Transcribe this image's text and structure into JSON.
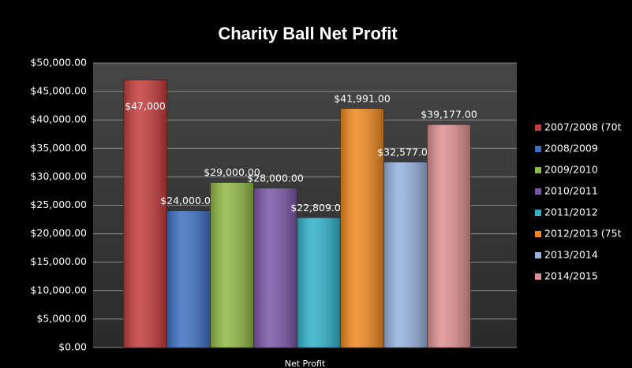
{
  "chart_data": {
    "type": "bar",
    "title": "Charity Ball Net Profit",
    "categories": [
      "Net Profit"
    ],
    "series": [
      {
        "name": "2007/2008 (70t",
        "color": "#c43b3b",
        "values": [
          47000
        ],
        "value_labels": [
          "$47,000"
        ]
      },
      {
        "name": "2008/2009",
        "color": "#3c70c2",
        "values": [
          24000
        ],
        "value_labels": [
          "$24,000.00"
        ]
      },
      {
        "name": "2009/2010",
        "color": "#90b844",
        "values": [
          29000
        ],
        "value_labels": [
          "$29,000.00"
        ]
      },
      {
        "name": "2010/2011",
        "color": "#7a55a8",
        "values": [
          28000
        ],
        "value_labels": [
          "$28,000.00"
        ]
      },
      {
        "name": "2011/2012",
        "color": "#2fb1c9",
        "values": [
          22809
        ],
        "value_labels": [
          "$22,809.00"
        ]
      },
      {
        "name": "2012/2013 (75t",
        "color": "#f0891f",
        "values": [
          41991
        ],
        "value_labels": [
          "$41,991.00"
        ]
      },
      {
        "name": "2013/2014",
        "color": "#96b2df",
        "values": [
          32577
        ],
        "value_labels": [
          "$32,577.00"
        ]
      },
      {
        "name": "2014/2015",
        "color": "#de8f8f",
        "values": [
          39177
        ],
        "value_labels": [
          "$39,177.00"
        ]
      }
    ],
    "ylim": [
      0,
      50000
    ],
    "yticks": [
      {
        "value": 0,
        "label": "$0.00"
      },
      {
        "value": 5000,
        "label": "$5,000.00"
      },
      {
        "value": 10000,
        "label": "$10,000.00"
      },
      {
        "value": 15000,
        "label": "$15,000.00"
      },
      {
        "value": 20000,
        "label": "$20,000.00"
      },
      {
        "value": 25000,
        "label": "$25,000.00"
      },
      {
        "value": 30000,
        "label": "$30,000.00"
      },
      {
        "value": 35000,
        "label": "$35,000.00"
      },
      {
        "value": 40000,
        "label": "$40,000.00"
      },
      {
        "value": 45000,
        "label": "$45,000.00"
      },
      {
        "value": 50000,
        "label": "$50,000.00"
      }
    ],
    "grid": true,
    "legend": "right"
  }
}
